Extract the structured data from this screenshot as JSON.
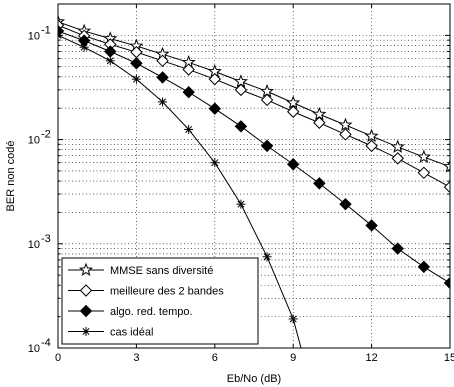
{
  "chart_data": {
    "type": "line",
    "xlabel": "Eb/No (dB)",
    "ylabel": "BER non codé",
    "xlim": [
      0,
      15
    ],
    "ylim": [
      0.0001,
      0.2
    ],
    "yscale": "log",
    "grid": true,
    "legend_position": "bottom-left",
    "x_ticks": [
      0,
      3,
      6,
      9,
      12,
      15
    ],
    "y_ticks": [
      {
        "value": 0.1,
        "base": "10",
        "exp": "-1"
      },
      {
        "value": 0.01,
        "base": "10",
        "exp": "-2"
      },
      {
        "value": 0.001,
        "base": "10",
        "exp": "-3"
      },
      {
        "value": 0.0001,
        "base": "10",
        "exp": "-4"
      }
    ],
    "series": [
      {
        "name": "MMSE sans diversité",
        "marker": "star",
        "x": [
          0,
          1,
          2,
          3,
          4,
          5,
          6,
          7,
          8,
          9,
          10,
          11,
          12,
          13,
          14,
          15
        ],
        "y": [
          0.135,
          0.11,
          0.093,
          0.079,
          0.066,
          0.055,
          0.045,
          0.036,
          0.029,
          0.0225,
          0.0175,
          0.0138,
          0.0108,
          0.0085,
          0.0068,
          0.0055
        ]
      },
      {
        "name": "meilleure des 2 bandes",
        "marker": "diamond-open",
        "x": [
          0,
          1,
          2,
          3,
          4,
          5,
          6,
          7,
          8,
          9,
          10,
          11,
          12,
          13,
          14,
          15
        ],
        "y": [
          0.125,
          0.099,
          0.082,
          0.069,
          0.057,
          0.047,
          0.038,
          0.03,
          0.024,
          0.0185,
          0.0145,
          0.0112,
          0.0087,
          0.0066,
          0.0048,
          0.0035
        ]
      },
      {
        "name": "algo. red. tempo.",
        "marker": "diamond-filled",
        "x": [
          0,
          1,
          2,
          3,
          4,
          5,
          6,
          7,
          8,
          9,
          10,
          11,
          12,
          13,
          14,
          15
        ],
        "y": [
          0.11,
          0.089,
          0.07,
          0.054,
          0.0395,
          0.0285,
          0.0198,
          0.0134,
          0.0087,
          0.0058,
          0.0038,
          0.0024,
          0.0015,
          0.0009,
          0.0006,
          0.00042
        ]
      },
      {
        "name": "cas idéal",
        "marker": "asterisk",
        "x": [
          0,
          1,
          2,
          3,
          4,
          5,
          6,
          7,
          8,
          9
        ],
        "y": [
          0.1,
          0.077,
          0.057,
          0.038,
          0.023,
          0.0125,
          0.006,
          0.0024,
          0.00075,
          0.00019
        ],
        "line_end": [
          9.3,
          0.0001
        ]
      }
    ]
  }
}
